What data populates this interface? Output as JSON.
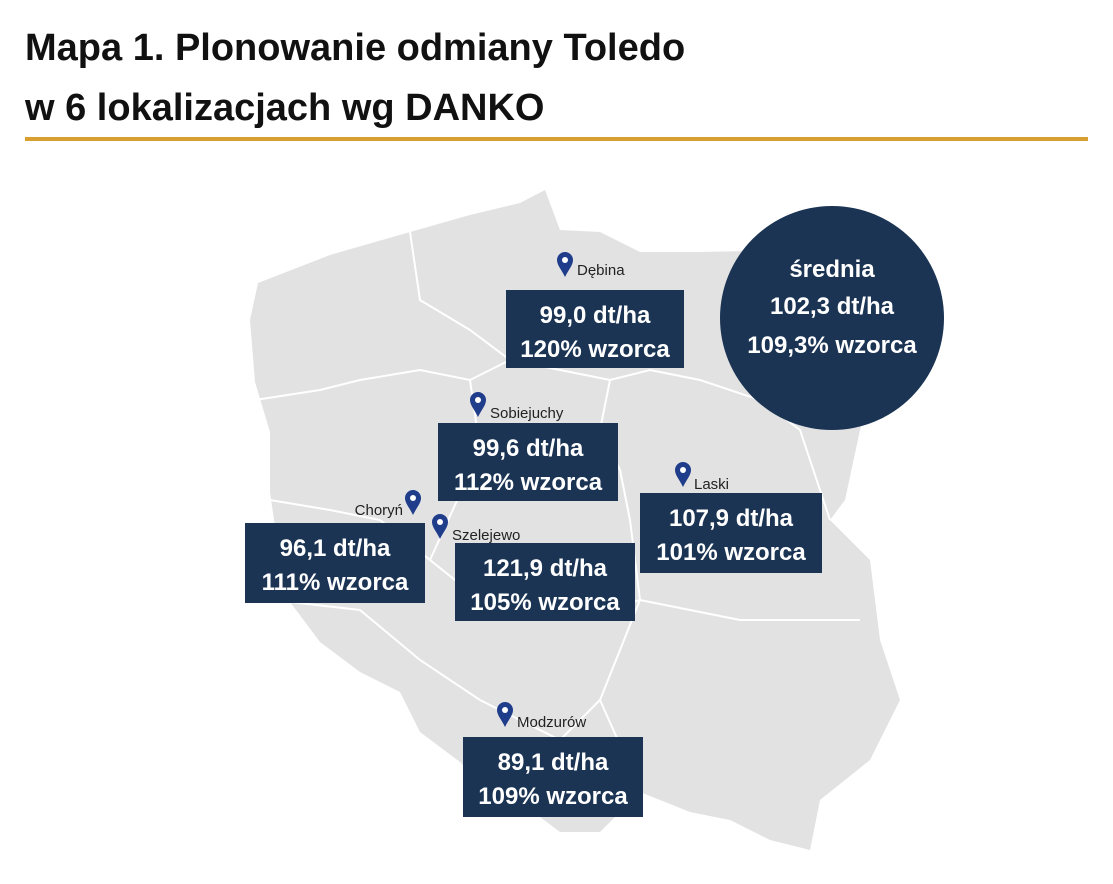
{
  "title": [
    "Mapa 1. Plonowanie odmiany Toledo",
    "w 6 lokalizacjach wg DANKO"
  ],
  "locations": [
    {
      "name": "Dębina",
      "yield": "99,0 dt/ha",
      "percent": "120% wzorca"
    },
    {
      "name": "Sobiejuchy",
      "yield": "99,6 dt/ha",
      "percent": "112% wzorca"
    },
    {
      "name": "Choryń",
      "yield": "96,1 dt/ha",
      "percent": "111% wzorca"
    },
    {
      "name": "Szelejewo",
      "yield": "121,9 dt/ha",
      "percent": "105% wzorca"
    },
    {
      "name": "Laski",
      "yield": "107,9 dt/ha",
      "percent": "101% wzorca"
    },
    {
      "name": "Modzurów",
      "yield": "89,1 dt/ha",
      "percent": "109% wzorca"
    }
  ],
  "average": {
    "label": "średnia",
    "yield": "102,3 dt/ha",
    "percent": "109,3% wzorca"
  }
}
